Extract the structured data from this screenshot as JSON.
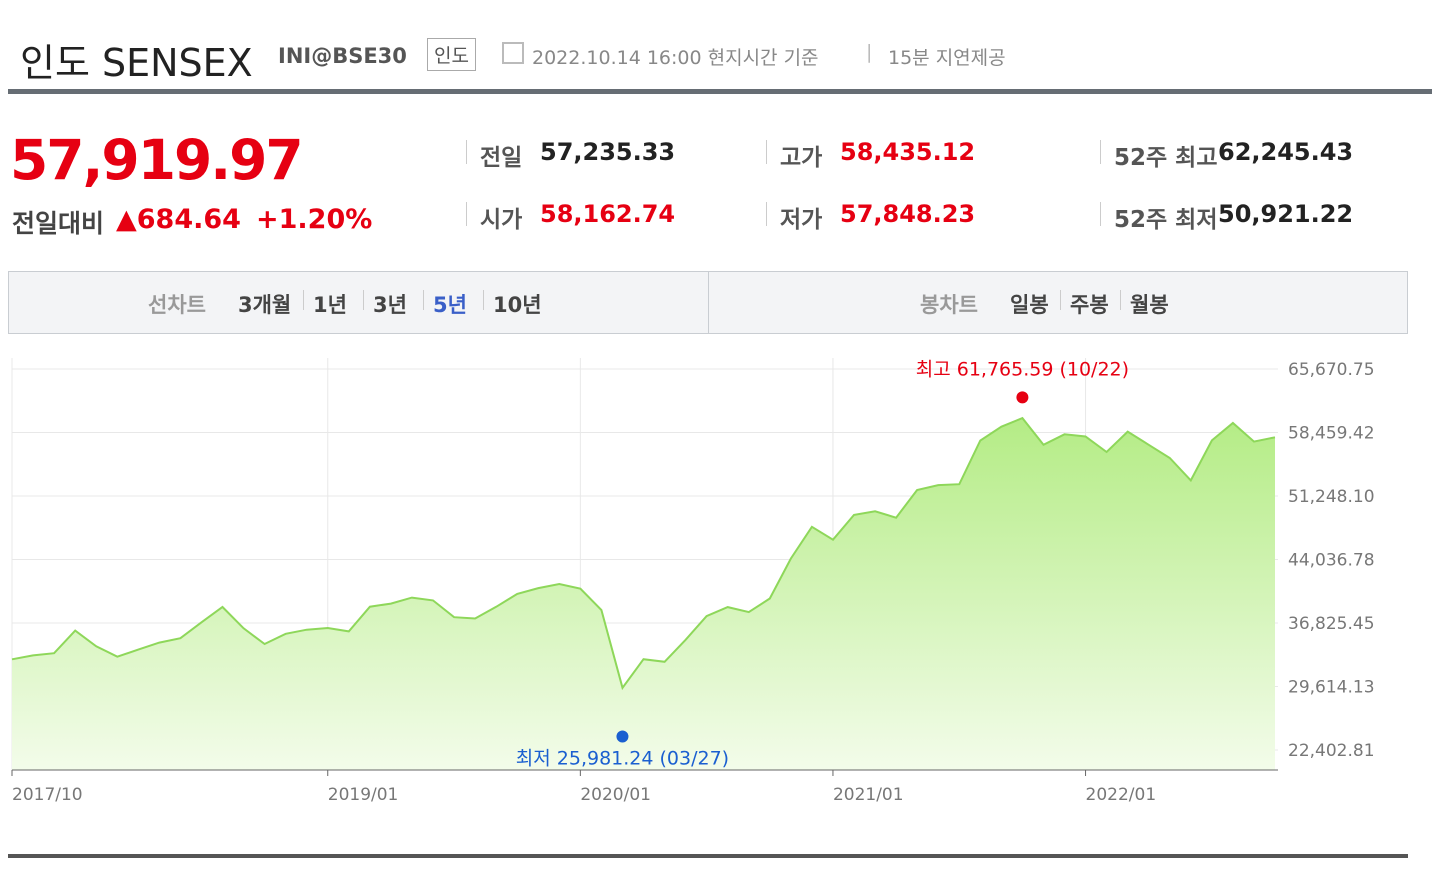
{
  "header": {
    "title": "인도 SENSEX",
    "code": "INI@BSE30",
    "badge": "인도",
    "datetime": "2022.10.14 16:00 현지시간 기준",
    "delay": "15분 지연제공"
  },
  "quote": {
    "price": "57,919.97",
    "change_label": "전일대비",
    "change": "684.64",
    "change_pct": "+1.20%",
    "stats": [
      {
        "label": "전일",
        "value": "57,235.33",
        "color": "#222"
      },
      {
        "label": "고가",
        "value": "58,435.12",
        "color": "#e60012"
      },
      {
        "label": "52주 최고",
        "value": "62,245.43",
        "color": "#222"
      },
      {
        "label": "시가",
        "value": "58,162.74",
        "color": "#e60012"
      },
      {
        "label": "저가",
        "value": "57,848.23",
        "color": "#e60012"
      },
      {
        "label": "52주 최저",
        "value": "50,921.22",
        "color": "#222"
      }
    ]
  },
  "tabs": {
    "line_label": "선차트",
    "line_periods": [
      "3개월",
      "1년",
      "3년",
      "5년",
      "10년"
    ],
    "active": "5년",
    "candle_label": "봉차트",
    "candle_periods": [
      "일봉",
      "주봉",
      "월봉"
    ]
  },
  "chart_data": {
    "type": "area",
    "color": "#8ed75a",
    "grid": true,
    "x": [
      "2017/10",
      "2017/11",
      "2017/12",
      "2018/01",
      "2018/02",
      "2018/03",
      "2018/04",
      "2018/05",
      "2018/06",
      "2018/07",
      "2018/08",
      "2018/09",
      "2018/10",
      "2018/11",
      "2018/12",
      "2019/01",
      "2019/02",
      "2019/03",
      "2019/04",
      "2019/05",
      "2019/06",
      "2019/07",
      "2019/08",
      "2019/09",
      "2019/10",
      "2019/11",
      "2019/12",
      "2020/01",
      "2020/02",
      "2020/03",
      "2020/04",
      "2020/05",
      "2020/06",
      "2020/07",
      "2020/08",
      "2020/09",
      "2020/10",
      "2020/11",
      "2020/12",
      "2021/01",
      "2021/02",
      "2021/03",
      "2021/04",
      "2021/05",
      "2021/06",
      "2021/07",
      "2021/08",
      "2021/09",
      "2021/10",
      "2021/11",
      "2021/12",
      "2022/01",
      "2022/02",
      "2022/03",
      "2022/04",
      "2022/05",
      "2022/06",
      "2022/07",
      "2022/08",
      "2022/09",
      "2022/10"
    ],
    "series": [
      {
        "name": "SENSEX",
        "color": "#8ed75a",
        "values": [
          32700,
          33149,
          33400,
          35965,
          34184,
          33000,
          33800,
          34600,
          35100,
          36900,
          38645,
          36227,
          34442,
          35600,
          36068,
          36257,
          35867,
          38673,
          39032,
          39714,
          39395,
          37481,
          37333,
          38667,
          40129,
          40794,
          41254,
          40723,
          38297,
          29468,
          32718,
          32424,
          34916,
          37607,
          38628,
          38068,
          39614,
          44150,
          47751,
          46286,
          49100,
          49509,
          48782,
          51937,
          52483,
          52587,
          57552,
          59126,
          60100,
          57065,
          58254,
          58014,
          56247,
          58569,
          57061,
          55566,
          53019,
          57570,
          59537,
          57427,
          57920
        ]
      }
    ],
    "ylim": [
      20130,
      68060
    ],
    "yticks": [
      {
        "value": 22402.81,
        "label": "22,402.81"
      },
      {
        "value": 29614.13,
        "label": "29,614.13"
      },
      {
        "value": 36825.45,
        "label": "36,825.45"
      },
      {
        "value": 44036.78,
        "label": "44,036.78"
      },
      {
        "value": 51248.1,
        "label": "51,248.10"
      },
      {
        "value": 58459.42,
        "label": "58,459.42"
      },
      {
        "value": 65670.75,
        "label": "65,670.75"
      }
    ],
    "xticks": [
      "2017/10",
      "2019/01",
      "2020/01",
      "2021/01",
      "2022/01"
    ],
    "annotations": [
      {
        "x": "2021/10",
        "value": 61765.59,
        "label": "최고 61,765.59 (10/22)",
        "color": "#e60012"
      },
      {
        "x": "2020/03",
        "value": 25981.24,
        "label": "최저 25,981.24 (03/27)",
        "color": "#1a5fd0"
      }
    ]
  }
}
